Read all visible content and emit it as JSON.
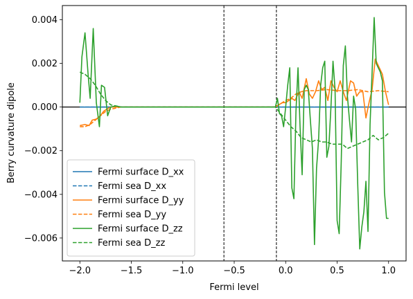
{
  "chart_data": {
    "type": "line",
    "xlabel": "Fermi level",
    "ylabel": "Berry curvature dipole",
    "xlim": [
      -2.17,
      1.17
    ],
    "ylim": [
      -0.00705,
      0.00465
    ],
    "x_ticks": [
      -2.0,
      -1.5,
      -1.0,
      -0.5,
      0.0,
      0.5,
      1.0
    ],
    "x_tick_labels": [
      "−2.0",
      "−1.5",
      "−1.0",
      "−0.5",
      "0.0",
      "0.5",
      "1.0"
    ],
    "y_ticks": [
      -0.006,
      -0.004,
      -0.002,
      0.0,
      0.002,
      0.004
    ],
    "y_tick_labels": [
      "−0.006",
      "−0.004",
      "−0.002",
      "0.000",
      "0.002",
      "0.004"
    ],
    "hlines": [
      0.0
    ],
    "vlines": [
      -0.6,
      -0.09
    ],
    "grid": false,
    "legend_position": "lower left",
    "series": [
      {
        "name": "Fermi surface D_xx",
        "color": "#1f77b4",
        "style": "solid",
        "points": [
          [
            -2.0,
            0.0
          ],
          [
            1.0,
            0.0
          ]
        ]
      },
      {
        "name": "Fermi sea D_xx",
        "color": "#1f77b4",
        "style": "dashed",
        "points": [
          [
            -2.0,
            0.0
          ],
          [
            1.0,
            0.0
          ]
        ]
      },
      {
        "name": "Fermi surface D_yy",
        "color": "#ff7f0e",
        "style": "solid",
        "points": [
          [
            -2.0,
            -0.00085
          ],
          [
            -1.95,
            -0.0008
          ],
          [
            -1.91,
            -0.00085
          ],
          [
            -1.88,
            -0.0006
          ],
          [
            -1.84,
            -0.00055
          ],
          [
            -1.8,
            -0.0004
          ],
          [
            -1.77,
            -0.0002
          ],
          [
            -1.74,
            -0.0001
          ],
          [
            -1.7,
            0.0
          ],
          [
            -1.6,
            0.0
          ],
          [
            -1.0,
            0.0
          ],
          [
            -0.1,
            0.0
          ],
          [
            -0.07,
            0.0001
          ],
          [
            -0.03,
            0.0002
          ],
          [
            0.0,
            0.0002
          ],
          [
            0.03,
            0.0003
          ],
          [
            0.06,
            0.0004
          ],
          [
            0.09,
            0.0003
          ],
          [
            0.13,
            0.0007
          ],
          [
            0.16,
            0.0004
          ],
          [
            0.2,
            0.0013
          ],
          [
            0.23,
            0.0006
          ],
          [
            0.26,
            0.0004
          ],
          [
            0.29,
            0.0007
          ],
          [
            0.32,
            0.0012
          ],
          [
            0.35,
            0.0008
          ],
          [
            0.38,
            0.0009
          ],
          [
            0.41,
            0.0003
          ],
          [
            0.44,
            0.0012
          ],
          [
            0.47,
            0.0009
          ],
          [
            0.5,
            0.0007
          ],
          [
            0.53,
            0.0012
          ],
          [
            0.56,
            0.0007
          ],
          [
            0.59,
            0.0003
          ],
          [
            0.63,
            0.0012
          ],
          [
            0.66,
            0.0011
          ],
          [
            0.69,
            0.0005
          ],
          [
            0.72,
            0.0007
          ],
          [
            0.75,
            0.0007
          ],
          [
            0.78,
            -0.0005
          ],
          [
            0.81,
            0.0002
          ],
          [
            0.84,
            0.0008
          ],
          [
            0.87,
            0.0022
          ],
          [
            0.91,
            0.0018
          ],
          [
            0.94,
            0.0015
          ],
          [
            0.97,
            0.0007
          ],
          [
            1.0,
            0.0001
          ]
        ]
      },
      {
        "name": "Fermi sea D_yy",
        "color": "#ff7f0e",
        "style": "dashed",
        "points": [
          [
            -2.0,
            -0.0009
          ],
          [
            -1.95,
            -0.0009
          ],
          [
            -1.9,
            -0.0008
          ],
          [
            -1.85,
            -0.0006
          ],
          [
            -1.8,
            -0.0004
          ],
          [
            -1.75,
            -0.0002
          ],
          [
            -1.7,
            -0.0001
          ],
          [
            -1.6,
            0.0
          ],
          [
            -0.1,
            0.0
          ],
          [
            -0.05,
            0.00015
          ],
          [
            0.0,
            0.0003
          ],
          [
            0.05,
            0.0004
          ],
          [
            0.1,
            0.0006
          ],
          [
            0.15,
            0.0007
          ],
          [
            0.2,
            0.00075
          ],
          [
            0.3,
            0.00075
          ],
          [
            0.4,
            0.0008
          ],
          [
            0.5,
            0.00075
          ],
          [
            0.6,
            0.00075
          ],
          [
            0.7,
            0.0008
          ],
          [
            0.8,
            0.0007
          ],
          [
            0.9,
            0.00075
          ],
          [
            1.0,
            0.0007
          ]
        ]
      },
      {
        "name": "Fermi surface D_zz",
        "color": "#2ca02c",
        "style": "solid",
        "points": [
          [
            -2.0,
            0.0002
          ],
          [
            -1.98,
            0.0023
          ],
          [
            -1.95,
            0.0034
          ],
          [
            -1.92,
            0.0015
          ],
          [
            -1.9,
            0.0004
          ],
          [
            -1.87,
            0.0036
          ],
          [
            -1.84,
            0.0002
          ],
          [
            -1.81,
            -0.0009
          ],
          [
            -1.79,
            0.001
          ],
          [
            -1.76,
            0.0009
          ],
          [
            -1.73,
            -0.0004
          ],
          [
            -1.7,
            0.0
          ],
          [
            -1.65,
            5e-05
          ],
          [
            -1.6,
            0.0
          ],
          [
            -1.0,
            0.0
          ],
          [
            -0.1,
            0.0
          ],
          [
            -0.08,
            0.0004
          ],
          [
            -0.06,
            -0.0003
          ],
          [
            -0.04,
            -0.0004
          ],
          [
            -0.02,
            -0.0009
          ],
          [
            0.0,
            0.0
          ],
          [
            0.02,
            0.001
          ],
          [
            0.04,
            0.0018
          ],
          [
            0.06,
            -0.0037
          ],
          [
            0.08,
            -0.0042
          ],
          [
            0.1,
            -0.0002
          ],
          [
            0.12,
            0.0018
          ],
          [
            0.14,
            -0.0009
          ],
          [
            0.16,
            -0.0031
          ],
          [
            0.18,
            0.0008
          ],
          [
            0.2,
            0.001
          ],
          [
            0.22,
            0.0008
          ],
          [
            0.24,
            -0.0006
          ],
          [
            0.26,
            -0.0019
          ],
          [
            0.28,
            -0.0063
          ],
          [
            0.3,
            -0.0028
          ],
          [
            0.32,
            -0.0015
          ],
          [
            0.34,
            0.001
          ],
          [
            0.36,
            0.0018
          ],
          [
            0.38,
            0.0021
          ],
          [
            0.4,
            -0.0023
          ],
          [
            0.42,
            -0.0018
          ],
          [
            0.44,
            0.0
          ],
          [
            0.46,
            0.0021
          ],
          [
            0.48,
            0.0008
          ],
          [
            0.5,
            -0.0052
          ],
          [
            0.52,
            -0.0058
          ],
          [
            0.54,
            -0.0025
          ],
          [
            0.56,
            0.0019
          ],
          [
            0.58,
            0.0028
          ],
          [
            0.6,
            0.0005
          ],
          [
            0.62,
            -0.0006
          ],
          [
            0.64,
            -0.0016
          ],
          [
            0.66,
            0.0005
          ],
          [
            0.68,
            -0.0001
          ],
          [
            0.7,
            -0.0035
          ],
          [
            0.72,
            -0.0065
          ],
          [
            0.74,
            -0.0055
          ],
          [
            0.76,
            -0.0048
          ],
          [
            0.78,
            -0.0034
          ],
          [
            0.8,
            -0.0057
          ],
          [
            0.82,
            -0.0008
          ],
          [
            0.84,
            0.0016
          ],
          [
            0.86,
            0.0041
          ],
          [
            0.88,
            0.002
          ],
          [
            0.9,
            0.0018
          ],
          [
            0.92,
            0.0016
          ],
          [
            0.94,
            0.0012
          ],
          [
            0.96,
            -0.0039
          ],
          [
            0.98,
            -0.0051
          ],
          [
            1.0,
            -0.0051
          ]
        ]
      },
      {
        "name": "Fermi sea D_zz",
        "color": "#2ca02c",
        "style": "dashed",
        "points": [
          [
            -2.0,
            0.0016
          ],
          [
            -1.95,
            0.0015
          ],
          [
            -1.9,
            0.0013
          ],
          [
            -1.85,
            0.001
          ],
          [
            -1.8,
            0.0006
          ],
          [
            -1.75,
            0.0003
          ],
          [
            -1.7,
            0.0001
          ],
          [
            -1.6,
            0.0
          ],
          [
            -0.1,
            0.0
          ],
          [
            -0.05,
            -0.0003
          ],
          [
            0.0,
            -0.0006
          ],
          [
            0.05,
            -0.0009
          ],
          [
            0.1,
            -0.0011
          ],
          [
            0.15,
            -0.0014
          ],
          [
            0.2,
            -0.0015
          ],
          [
            0.25,
            -0.0016
          ],
          [
            0.3,
            -0.0015
          ],
          [
            0.35,
            -0.0016
          ],
          [
            0.4,
            -0.0016
          ],
          [
            0.45,
            -0.0017
          ],
          [
            0.5,
            -0.0017
          ],
          [
            0.55,
            -0.0017
          ],
          [
            0.6,
            -0.0019
          ],
          [
            0.65,
            -0.0018
          ],
          [
            0.7,
            -0.0017
          ],
          [
            0.75,
            -0.0016
          ],
          [
            0.8,
            -0.0015
          ],
          [
            0.85,
            -0.0013
          ],
          [
            0.9,
            -0.0015
          ],
          [
            0.95,
            -0.0014
          ],
          [
            1.0,
            -0.0012
          ]
        ]
      }
    ]
  }
}
